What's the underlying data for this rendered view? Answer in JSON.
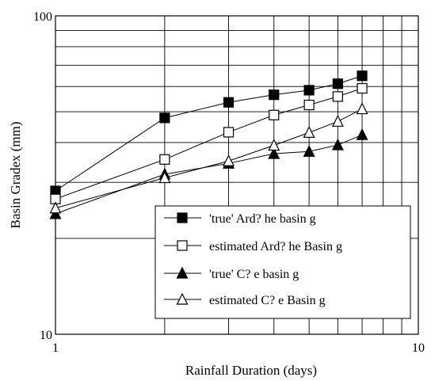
{
  "chart_data": {
    "type": "line",
    "xlabel": "Rainfall Duration (days)",
    "ylabel": "Basin Gradex (mm)",
    "x_scale": "log",
    "y_scale": "log",
    "xlim": [
      1,
      10
    ],
    "ylim": [
      10,
      100
    ],
    "grid": true,
    "legend_position": "bottom-right",
    "x_tick_labels": [
      "1",
      "10"
    ],
    "y_tick_labels": [
      "10",
      "100"
    ],
    "x": [
      1,
      2,
      3,
      4,
      5,
      6,
      7
    ],
    "series": [
      {
        "name": "'true' Ard? he basin g",
        "marker": "square-filled",
        "values": [
          28.2,
          47.8,
          53.5,
          56.5,
          58.4,
          61.2,
          64.8
        ]
      },
      {
        "name": "estimated Ard? he Basin g",
        "marker": "square-open",
        "values": [
          26.6,
          35.4,
          43.1,
          48.8,
          52.5,
          55.8,
          59.2
        ]
      },
      {
        "name": "'true' C? e basin g",
        "marker": "triangle-filled",
        "values": [
          23.9,
          31.8,
          34.4,
          36.9,
          37.5,
          39.3,
          42.3
        ]
      },
      {
        "name": "estimated C? e Basin g",
        "marker": "triangle-open",
        "values": [
          24.9,
          31.0,
          35.0,
          39.2,
          43.0,
          46.6,
          51.0
        ]
      }
    ]
  }
}
